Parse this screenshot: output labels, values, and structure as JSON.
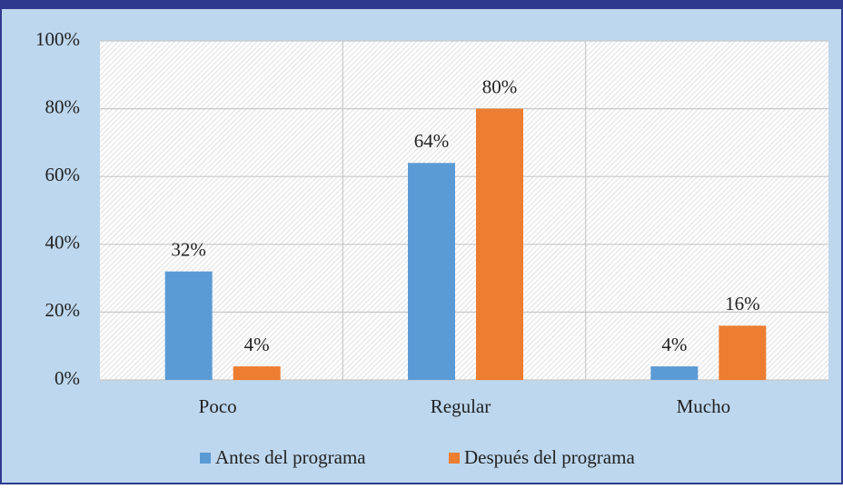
{
  "chart_data": {
    "type": "bar",
    "categories": [
      "Poco",
      "Regular",
      "Mucho"
    ],
    "series": [
      {
        "name": "Antes del programa",
        "color": "#5b9bd5",
        "values": [
          32,
          64,
          4
        ],
        "value_labels": [
          "32%",
          "64%",
          "4%"
        ]
      },
      {
        "name": "Después del programa",
        "color": "#ed7d31",
        "values": [
          4,
          80,
          16
        ],
        "value_labels": [
          "4%",
          "80%",
          "16%"
        ]
      }
    ],
    "ylim": [
      0,
      100
    ],
    "yticks": [
      {
        "value": 0,
        "label": "0%"
      },
      {
        "value": 20,
        "label": "20%"
      },
      {
        "value": 40,
        "label": "40%"
      },
      {
        "value": 60,
        "label": "60%"
      },
      {
        "value": 80,
        "label": "80%"
      },
      {
        "value": 100,
        "label": "100%"
      }
    ],
    "grid": true,
    "legend": "bottom"
  }
}
